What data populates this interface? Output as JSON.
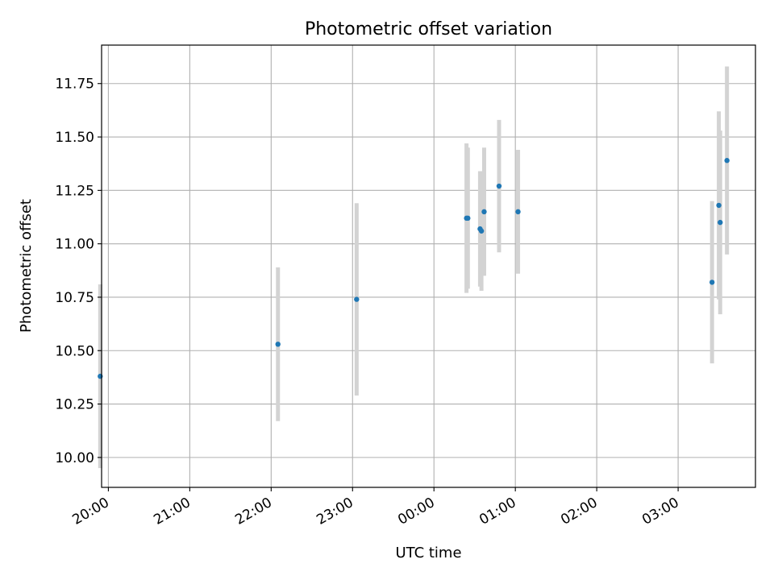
{
  "chart_data": {
    "type": "scatter",
    "title": "Photometric offset variation",
    "xlabel": "UTC time",
    "ylabel": "Photometric offset",
    "x_unit": "UTC time (HH:MM)",
    "xlim": [
      "19:55",
      "03:57"
    ],
    "ylim": [
      9.86,
      11.93
    ],
    "grid": true,
    "xticks": [
      "20:00",
      "21:00",
      "22:00",
      "23:00",
      "00:00",
      "01:00",
      "02:00",
      "03:00"
    ],
    "yticks": [
      "10.00",
      "10.25",
      "10.50",
      "10.75",
      "11.00",
      "11.25",
      "11.50",
      "11.75"
    ],
    "colors": {
      "points": "#1f77b4",
      "errorbars": "#d3d3d3",
      "grid": "#b0b0b0"
    },
    "points": [
      {
        "time": "19:54",
        "value": 10.38,
        "error": 0.43
      },
      {
        "time": "22:05",
        "value": 10.53,
        "error": 0.36
      },
      {
        "time": "23:03",
        "value": 10.74,
        "error": 0.45
      },
      {
        "time": "00:24",
        "value": 11.12,
        "error": 0.35
      },
      {
        "time": "00:25",
        "value": 11.12,
        "error": 0.33
      },
      {
        "time": "00:34",
        "value": 11.07,
        "error": 0.27
      },
      {
        "time": "00:35",
        "value": 11.06,
        "error": 0.28
      },
      {
        "time": "00:37",
        "value": 11.15,
        "error": 0.3
      },
      {
        "time": "00:48",
        "value": 11.27,
        "error": 0.31
      },
      {
        "time": "01:02",
        "value": 11.15,
        "error": 0.29
      },
      {
        "time": "03:25",
        "value": 10.82,
        "error": 0.38
      },
      {
        "time": "03:30",
        "value": 11.18,
        "error": 0.44
      },
      {
        "time": "03:31",
        "value": 11.1,
        "error": 0.43
      },
      {
        "time": "03:36",
        "value": 11.39,
        "error": 0.44
      }
    ]
  }
}
